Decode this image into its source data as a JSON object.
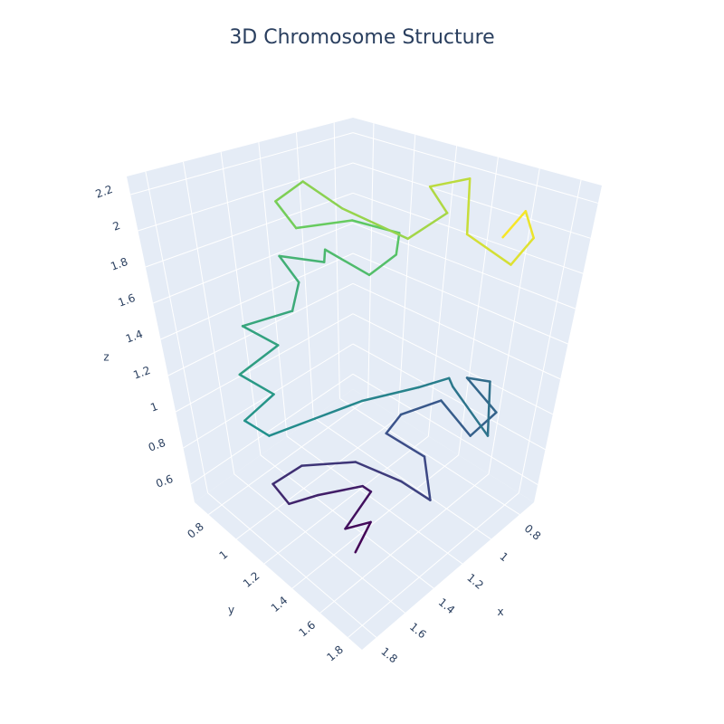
{
  "chart_data": {
    "type": "line3d",
    "title": "3D Chromosome Structure",
    "x": [
      1.6,
      1.55,
      1.62,
      1.5,
      1.45,
      1.6,
      1.7,
      1.75,
      1.65,
      1.5,
      1.35,
      1.25,
      1.2,
      1.3,
      1.15,
      1.0,
      0.95,
      0.85,
      0.9,
      0.8,
      0.95,
      1.05,
      0.9,
      1.1,
      1.3,
      1.5,
      1.7,
      1.75,
      1.6,
      1.7,
      1.5,
      1.6,
      1.4,
      1.3,
      1.35,
      1.2,
      1.3,
      1.1,
      1.0,
      1.1,
      1.2,
      1.35,
      1.4,
      1.3,
      1.2,
      1.05,
      0.95,
      1.0,
      0.9,
      1.0,
      0.9,
      0.85,
      0.8,
      0.85
    ],
    "y": [
      1.55,
      1.6,
      1.5,
      1.55,
      1.45,
      1.3,
      1.2,
      1.15,
      1.25,
      1.45,
      1.6,
      1.7,
      1.6,
      1.45,
      1.4,
      1.5,
      1.65,
      1.7,
      1.55,
      1.6,
      1.75,
      1.6,
      1.45,
      1.45,
      1.3,
      1.2,
      1.1,
      1.0,
      1.05,
      0.95,
      1.0,
      0.9,
      1.0,
      0.95,
      0.9,
      1.0,
      1.1,
      1.15,
      1.2,
      1.3,
      1.15,
      1.0,
      0.95,
      1.0,
      1.1,
      1.3,
      1.4,
      1.35,
      1.45,
      1.55,
      1.7,
      1.75,
      1.65,
      1.6
    ],
    "z": [
      0.6,
      0.75,
      0.7,
      0.85,
      0.8,
      0.75,
      0.7,
      0.8,
      0.9,
      0.95,
      0.85,
      0.75,
      0.9,
      1.0,
      1.0,
      1.05,
      0.9,
      1.0,
      1.15,
      1.1,
      0.95,
      1.2,
      1.1,
      1.15,
      1.1,
      1.05,
      1.0,
      1.05,
      1.15,
      1.25,
      1.35,
      1.45,
      1.5,
      1.6,
      1.75,
      1.7,
      1.85,
      1.65,
      1.75,
      1.95,
      2.0,
      1.95,
      2.1,
      2.2,
      2.05,
      1.9,
      2.05,
      2.2,
      2.25,
      2.0,
      1.85,
      2.0,
      2.1,
      1.95
    ],
    "colorscale": [
      "#440154",
      "#3b528b",
      "#21918c",
      "#5ec962",
      "#fde725"
    ],
    "xlabel": "x",
    "ylabel": "y",
    "zlabel": "z",
    "xlim": [
      0.7,
      1.9
    ],
    "ylim": [
      0.7,
      1.9
    ],
    "zlim": [
      0.5,
      2.3
    ],
    "xticks": [
      0.8,
      1,
      1.2,
      1.4,
      1.6,
      1.8
    ],
    "yticks": [
      0.8,
      1,
      1.2,
      1.4,
      1.6,
      1.8
    ],
    "zticks": [
      0.6,
      0.8,
      1,
      1.2,
      1.4,
      1.6,
      1.8,
      2,
      2.2
    ],
    "grid": true
  }
}
